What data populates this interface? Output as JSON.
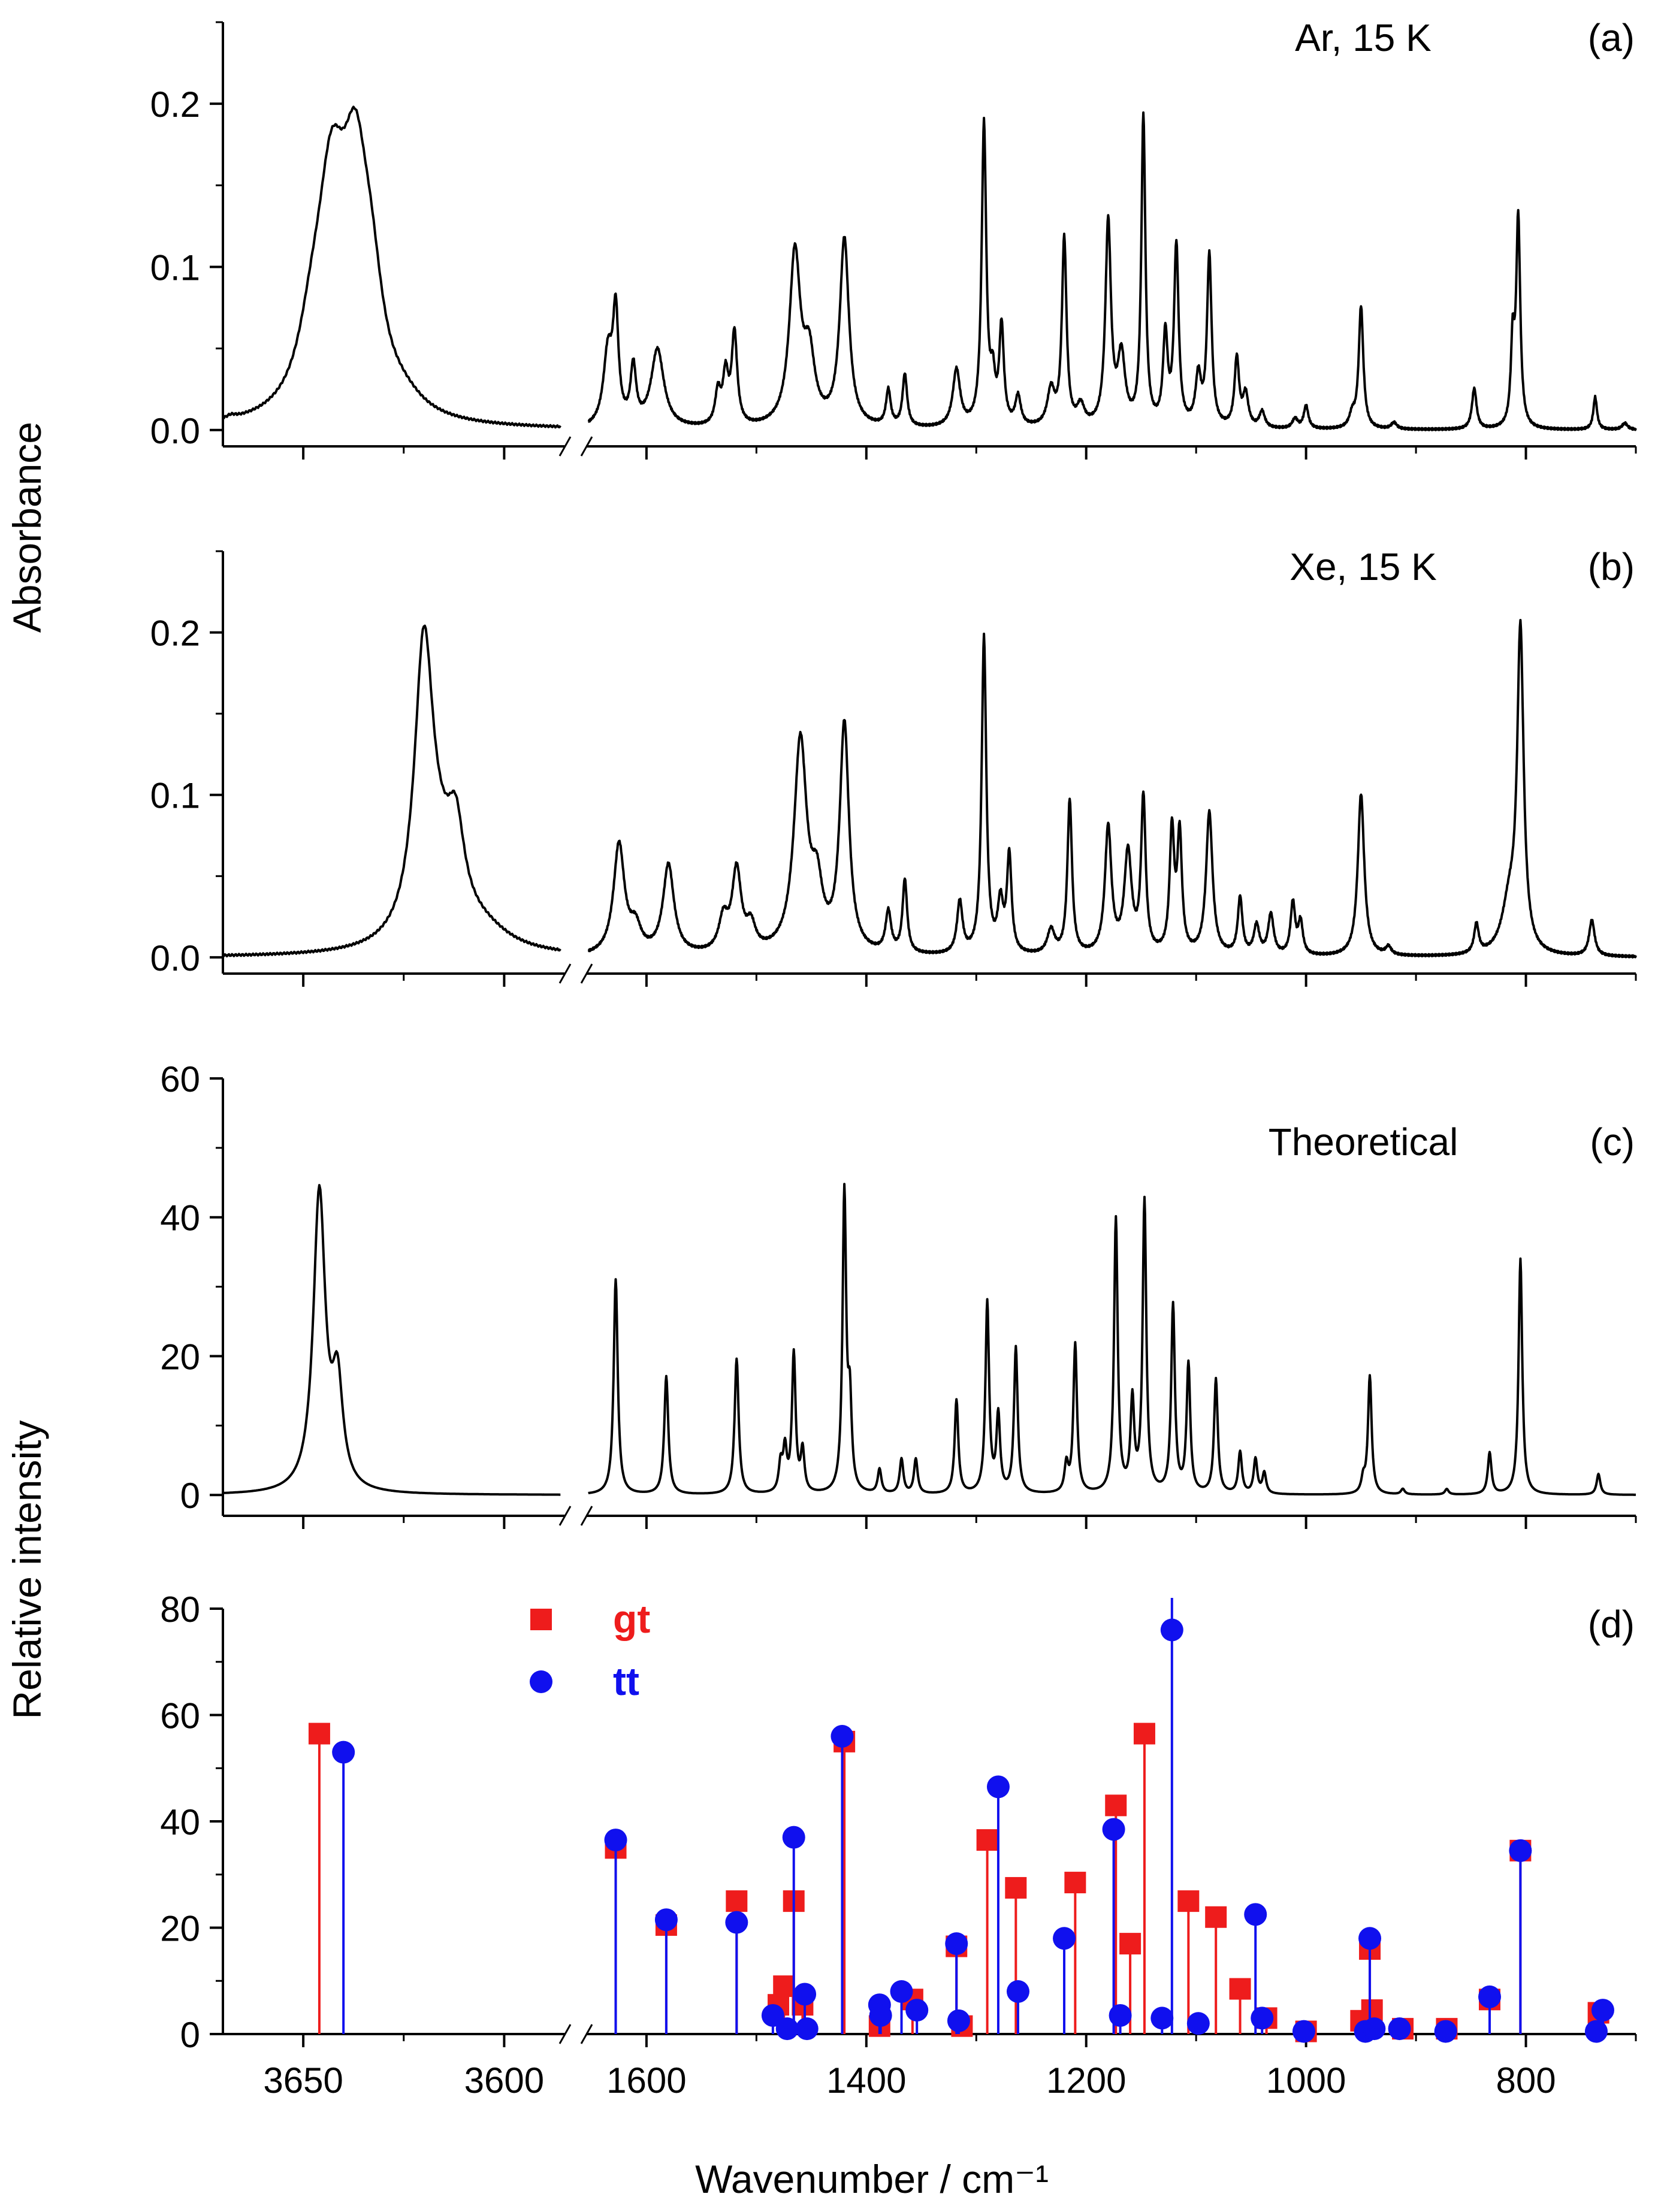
{
  "figure": {
    "y_label_top": "Absorbance",
    "y_label_bottom": "Relative intensity",
    "x_label": "Wavenumber / cm⁻¹"
  },
  "chart_data": [
    {
      "id": "a",
      "type": "line",
      "tag": "(a)",
      "annotation": "Ar, 15 K",
      "ylim": [
        -0.01,
        0.25
      ],
      "yticks": [
        "0.0",
        "0.1",
        "0.2"
      ],
      "ytick_values": [
        0.0,
        0.1,
        0.2
      ],
      "x_break": true,
      "left_range": [
        3670,
        3585
      ],
      "right_range": [
        1655,
        700
      ],
      "baseline": 0.0,
      "peaks_left": [
        {
          "x": 3668,
          "h": 0.002,
          "w": 1.5
        },
        {
          "x": 3643,
          "h": 0.128,
          "w": 4.5
        },
        {
          "x": 3637,
          "h": 0.124,
          "w": 4.0
        },
        {
          "x": 3633,
          "h": 0.05,
          "w": 3.5
        },
        {
          "x": 3648,
          "h": 0.03,
          "w": 4.0
        },
        {
          "x": 3625,
          "h": 0.008,
          "w": 6.0
        }
      ],
      "peaks_right": [
        {
          "x": 1635,
          "h": 0.045,
          "w": 5
        },
        {
          "x": 1628,
          "h": 0.065,
          "w": 3
        },
        {
          "x": 1612,
          "h": 0.035,
          "w": 3
        },
        {
          "x": 1590,
          "h": 0.048,
          "w": 7
        },
        {
          "x": 1535,
          "h": 0.02,
          "w": 3
        },
        {
          "x": 1528,
          "h": 0.03,
          "w": 3
        },
        {
          "x": 1520,
          "h": 0.056,
          "w": 3
        },
        {
          "x": 1465,
          "h": 0.105,
          "w": 6
        },
        {
          "x": 1452,
          "h": 0.04,
          "w": 6
        },
        {
          "x": 1420,
          "h": 0.115,
          "w": 5
        },
        {
          "x": 1380,
          "h": 0.022,
          "w": 2.5
        },
        {
          "x": 1365,
          "h": 0.032,
          "w": 2.5
        },
        {
          "x": 1318,
          "h": 0.035,
          "w": 4
        },
        {
          "x": 1293,
          "h": 0.185,
          "w": 2.5
        },
        {
          "x": 1285,
          "h": 0.025,
          "w": 2.5
        },
        {
          "x": 1277,
          "h": 0.06,
          "w": 2.5
        },
        {
          "x": 1262,
          "h": 0.018,
          "w": 3
        },
        {
          "x": 1232,
          "h": 0.022,
          "w": 4
        },
        {
          "x": 1220,
          "h": 0.115,
          "w": 2.5
        },
        {
          "x": 1205,
          "h": 0.012,
          "w": 4
        },
        {
          "x": 1180,
          "h": 0.125,
          "w": 3
        },
        {
          "x": 1168,
          "h": 0.042,
          "w": 4
        },
        {
          "x": 1148,
          "h": 0.19,
          "w": 2.2
        },
        {
          "x": 1128,
          "h": 0.055,
          "w": 2.5
        },
        {
          "x": 1118,
          "h": 0.11,
          "w": 2.5
        },
        {
          "x": 1098,
          "h": 0.03,
          "w": 3
        },
        {
          "x": 1088,
          "h": 0.105,
          "w": 2.5
        },
        {
          "x": 1063,
          "h": 0.042,
          "w": 2.5
        },
        {
          "x": 1055,
          "h": 0.02,
          "w": 3
        },
        {
          "x": 1040,
          "h": 0.01,
          "w": 3
        },
        {
          "x": 1010,
          "h": 0.006,
          "w": 3
        },
        {
          "x": 1000,
          "h": 0.014,
          "w": 2.5
        },
        {
          "x": 958,
          "h": 0.008,
          "w": 3
        },
        {
          "x": 950,
          "h": 0.075,
          "w": 2.5
        },
        {
          "x": 920,
          "h": 0.004,
          "w": 3
        },
        {
          "x": 847,
          "h": 0.025,
          "w": 2.5
        },
        {
          "x": 812,
          "h": 0.05,
          "w": 2
        },
        {
          "x": 807,
          "h": 0.128,
          "w": 2.2
        },
        {
          "x": 737,
          "h": 0.02,
          "w": 2
        },
        {
          "x": 710,
          "h": 0.004,
          "w": 3
        }
      ]
    },
    {
      "id": "b",
      "type": "line",
      "tag": "(b)",
      "annotation": "Xe, 15 K",
      "ylim": [
        -0.01,
        0.25
      ],
      "yticks": [
        "0.0",
        "0.1",
        "0.2"
      ],
      "ytick_values": [
        0.0,
        0.1,
        0.2
      ],
      "x_break": true,
      "left_range": [
        3670,
        3585
      ],
      "right_range": [
        1655,
        700
      ],
      "baseline": 0.0,
      "peaks_left": [
        {
          "x": 3620,
          "h": 0.17,
          "w": 2.8
        },
        {
          "x": 3612,
          "h": 0.048,
          "w": 2.5
        },
        {
          "x": 3616,
          "h": 0.04,
          "w": 6.0
        },
        {
          "x": 3605,
          "h": 0.01,
          "w": 8.0
        }
      ],
      "peaks_right": [
        {
          "x": 1625,
          "h": 0.068,
          "w": 6
        },
        {
          "x": 1610,
          "h": 0.015,
          "w": 6
        },
        {
          "x": 1580,
          "h": 0.055,
          "w": 6
        },
        {
          "x": 1530,
          "h": 0.02,
          "w": 5
        },
        {
          "x": 1518,
          "h": 0.05,
          "w": 5
        },
        {
          "x": 1505,
          "h": 0.015,
          "w": 5
        },
        {
          "x": 1460,
          "h": 0.13,
          "w": 7
        },
        {
          "x": 1445,
          "h": 0.035,
          "w": 6
        },
        {
          "x": 1420,
          "h": 0.14,
          "w": 5
        },
        {
          "x": 1380,
          "h": 0.025,
          "w": 3
        },
        {
          "x": 1365,
          "h": 0.045,
          "w": 2.5
        },
        {
          "x": 1315,
          "h": 0.032,
          "w": 3
        },
        {
          "x": 1293,
          "h": 0.195,
          "w": 2.5
        },
        {
          "x": 1278,
          "h": 0.03,
          "w": 3
        },
        {
          "x": 1270,
          "h": 0.06,
          "w": 2.5
        },
        {
          "x": 1232,
          "h": 0.015,
          "w": 4
        },
        {
          "x": 1215,
          "h": 0.095,
          "w": 2.5
        },
        {
          "x": 1180,
          "h": 0.078,
          "w": 3.5
        },
        {
          "x": 1162,
          "h": 0.062,
          "w": 4
        },
        {
          "x": 1148,
          "h": 0.095,
          "w": 2.5
        },
        {
          "x": 1122,
          "h": 0.075,
          "w": 2.5
        },
        {
          "x": 1115,
          "h": 0.072,
          "w": 2.5
        },
        {
          "x": 1088,
          "h": 0.088,
          "w": 3.5
        },
        {
          "x": 1060,
          "h": 0.035,
          "w": 2.5
        },
        {
          "x": 1045,
          "h": 0.018,
          "w": 3
        },
        {
          "x": 1032,
          "h": 0.025,
          "w": 3
        },
        {
          "x": 1012,
          "h": 0.032,
          "w": 2.5
        },
        {
          "x": 1005,
          "h": 0.02,
          "w": 2.5
        },
        {
          "x": 950,
          "h": 0.1,
          "w": 3.5
        },
        {
          "x": 925,
          "h": 0.005,
          "w": 3
        },
        {
          "x": 845,
          "h": 0.018,
          "w": 2.5
        },
        {
          "x": 805,
          "h": 0.195,
          "w": 3.5
        },
        {
          "x": 815,
          "h": 0.03,
          "w": 8
        },
        {
          "x": 740,
          "h": 0.022,
          "w": 3
        }
      ]
    },
    {
      "id": "c",
      "type": "line",
      "tag": "(c)",
      "annotation": "Theoretical",
      "ylim": [
        -3,
        60
      ],
      "yticks": [
        "0",
        "20",
        "40",
        "60"
      ],
      "ytick_values": [
        0,
        20,
        40,
        60
      ],
      "x_break": true,
      "left_range": [
        3670,
        3585
      ],
      "right_range": [
        1655,
        700
      ],
      "baseline": 0.0,
      "peaks_left": [
        {
          "x": 3646,
          "h": 43,
          "w": 1.8
        },
        {
          "x": 3641.5,
          "h": 14.5,
          "w": 1.6
        }
      ],
      "peaks_right": [
        {
          "x": 1628,
          "h": 31,
          "w": 2.2
        },
        {
          "x": 1582,
          "h": 17,
          "w": 2.2
        },
        {
          "x": 1518,
          "h": 19.5,
          "w": 2.2
        },
        {
          "x": 1478,
          "h": 4,
          "w": 2
        },
        {
          "x": 1474,
          "h": 6,
          "w": 2
        },
        {
          "x": 1466,
          "h": 20,
          "w": 2
        },
        {
          "x": 1458,
          "h": 6,
          "w": 2
        },
        {
          "x": 1420,
          "h": 43,
          "w": 2
        },
        {
          "x": 1415,
          "h": 12,
          "w": 2
        },
        {
          "x": 1388,
          "h": 3.5,
          "w": 2
        },
        {
          "x": 1368,
          "h": 5,
          "w": 2
        },
        {
          "x": 1355,
          "h": 5,
          "w": 2
        },
        {
          "x": 1318,
          "h": 13.5,
          "w": 2
        },
        {
          "x": 1290,
          "h": 27.5,
          "w": 2
        },
        {
          "x": 1280,
          "h": 11,
          "w": 2
        },
        {
          "x": 1264,
          "h": 21,
          "w": 2
        },
        {
          "x": 1218,
          "h": 4,
          "w": 2
        },
        {
          "x": 1210,
          "h": 21.5,
          "w": 2
        },
        {
          "x": 1173,
          "h": 39.5,
          "w": 2
        },
        {
          "x": 1158,
          "h": 13,
          "w": 2
        },
        {
          "x": 1147,
          "h": 42,
          "w": 2
        },
        {
          "x": 1121,
          "h": 27,
          "w": 2
        },
        {
          "x": 1107,
          "h": 18.5,
          "w": 2
        },
        {
          "x": 1082,
          "h": 16.5,
          "w": 2
        },
        {
          "x": 1060,
          "h": 6,
          "w": 2
        },
        {
          "x": 1046,
          "h": 5,
          "w": 2
        },
        {
          "x": 1038,
          "h": 3,
          "w": 2
        },
        {
          "x": 948,
          "h": 2,
          "w": 2
        },
        {
          "x": 942,
          "h": 17,
          "w": 2
        },
        {
          "x": 912,
          "h": 0.8,
          "w": 2
        },
        {
          "x": 872,
          "h": 0.8,
          "w": 2
        },
        {
          "x": 833,
          "h": 6,
          "w": 2
        },
        {
          "x": 805,
          "h": 34,
          "w": 2
        },
        {
          "x": 734,
          "h": 3,
          "w": 2
        }
      ]
    },
    {
      "id": "d",
      "type": "scatter",
      "subtype": "stick",
      "tag": "(d)",
      "ylim": [
        0,
        80
      ],
      "yticks": [
        "0",
        "20",
        "40",
        "60",
        "80"
      ],
      "ytick_values": [
        0,
        20,
        40,
        60,
        80
      ],
      "x_break": true,
      "left_range": [
        3670,
        3585
      ],
      "right_range": [
        1655,
        700
      ],
      "series": [
        {
          "name": "gt",
          "color": "#ee1c1c",
          "marker": "square",
          "points": [
            [
              3646,
              56.5
            ],
            [
              1628,
              35
            ],
            [
              1582,
              20.5
            ],
            [
              1518,
              25
            ],
            [
              1480,
              5.5
            ],
            [
              1475,
              9
            ],
            [
              1466,
              25
            ],
            [
              1458,
              5.5
            ],
            [
              1420,
              55
            ],
            [
              1388,
              1.5
            ],
            [
              1358,
              6.5
            ],
            [
              1318,
              16.5
            ],
            [
              1313,
              1.5
            ],
            [
              1290,
              36.5
            ],
            [
              1264,
              27.5
            ],
            [
              1210,
              28.5
            ],
            [
              1173,
              43
            ],
            [
              1160,
              17
            ],
            [
              1147,
              56.5
            ],
            [
              1107,
              25
            ],
            [
              1082,
              22
            ],
            [
              1060,
              8.5
            ],
            [
              1036,
              3
            ],
            [
              1000,
              0.5
            ],
            [
              950,
              2.5
            ],
            [
              942,
              16
            ],
            [
              940,
              4.5
            ],
            [
              912,
              1
            ],
            [
              872,
              1
            ],
            [
              833,
              6.5
            ],
            [
              805,
              34.5
            ],
            [
              734,
              4
            ]
          ]
        },
        {
          "name": "tt",
          "color": "#1010ee",
          "marker": "circle",
          "points": [
            [
              3640,
              53
            ],
            [
              1628,
              36.5
            ],
            [
              1582,
              21.5
            ],
            [
              1518,
              21
            ],
            [
              1485,
              3.5
            ],
            [
              1472,
              1
            ],
            [
              1466,
              37
            ],
            [
              1456,
              7.5
            ],
            [
              1454,
              1
            ],
            [
              1422,
              56
            ],
            [
              1388,
              5.5
            ],
            [
              1387,
              3.5
            ],
            [
              1368,
              8
            ],
            [
              1354,
              4.5
            ],
            [
              1318,
              17
            ],
            [
              1316,
              2.5
            ],
            [
              1280,
              46.5
            ],
            [
              1262,
              8
            ],
            [
              1220,
              18
            ],
            [
              1175,
              38.5
            ],
            [
              1169,
              3.5
            ],
            [
              1131,
              3
            ],
            [
              1122,
              76
            ],
            [
              1098,
              2
            ],
            [
              1046,
              22.5
            ],
            [
              1040,
              3
            ],
            [
              1002,
              0.5
            ],
            [
              946,
              0.5
            ],
            [
              942,
              18
            ],
            [
              938,
              1
            ],
            [
              915,
              1
            ],
            [
              873,
              0.5
            ],
            [
              833,
              7
            ],
            [
              805,
              34.5
            ],
            [
              736,
              0.5
            ],
            [
              730,
              4.5
            ]
          ]
        }
      ],
      "ticks_right_minor_tall": [
        1122
      ],
      "legend": {
        "position": "top-left"
      }
    }
  ],
  "x_axis": {
    "left_ticks": [
      {
        "value": 3650,
        "label": "3650"
      },
      {
        "value": 3600,
        "label": "3600"
      }
    ],
    "right_ticks": [
      {
        "value": 1600,
        "label": "1600"
      },
      {
        "value": 1400,
        "label": "1400"
      },
      {
        "value": 1200,
        "label": "1200"
      },
      {
        "value": 1000,
        "label": "1000"
      },
      {
        "value": 800,
        "label": "800"
      }
    ]
  }
}
